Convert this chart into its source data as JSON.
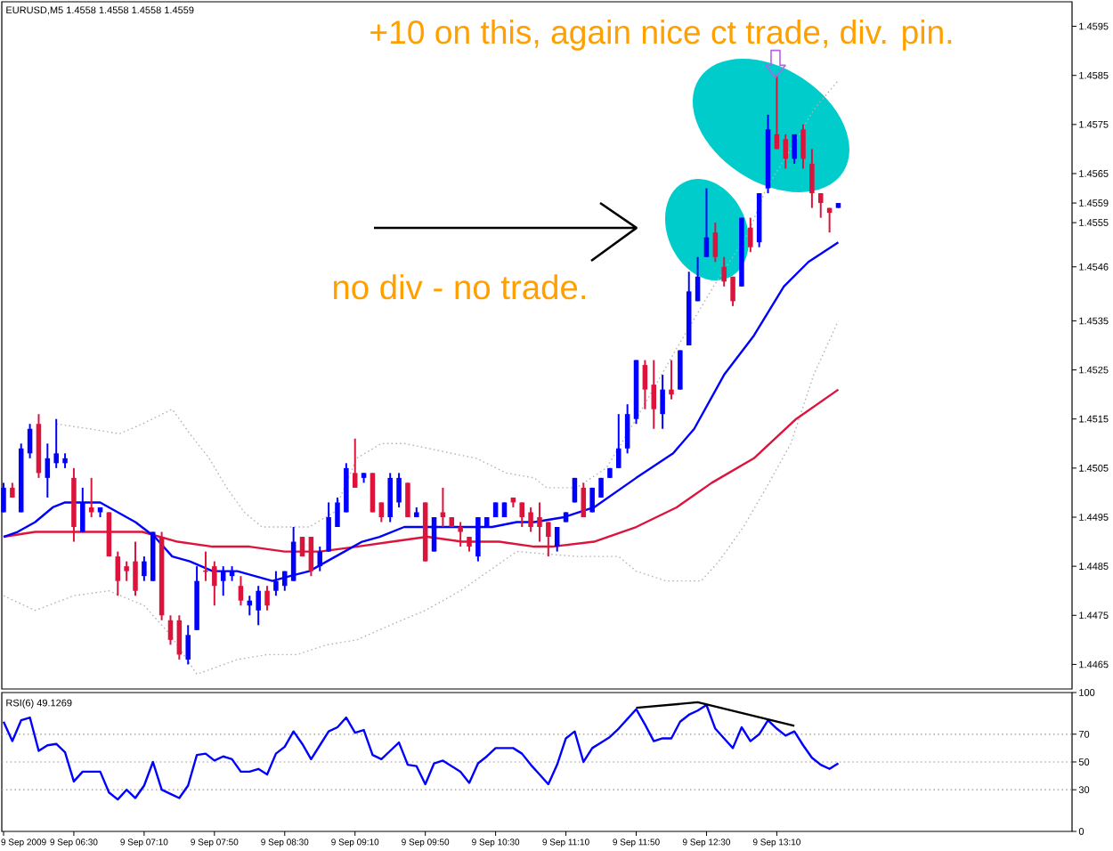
{
  "chart_data": [
    {
      "type": "candlestick",
      "title": "EURUSD,M5 1.4558 1.4558 1.4558 1.4559",
      "x": [
        "2009-09-09T05:50",
        "2009-09-09T05:55",
        "2009-09-09T06:00",
        "2009-09-09T06:05",
        "2009-09-09T06:10",
        "2009-09-09T06:15",
        "2009-09-09T06:20",
        "2009-09-09T06:25",
        "2009-09-09T06:30",
        "2009-09-09T06:35",
        "2009-09-09T06:40",
        "2009-09-09T06:45",
        "2009-09-09T06:50",
        "2009-09-09T06:55",
        "2009-09-09T07:00",
        "2009-09-09T07:05",
        "2009-09-09T07:10",
        "2009-09-09T07:15",
        "2009-09-09T07:20",
        "2009-09-09T07:25",
        "2009-09-09T07:30",
        "2009-09-09T07:35",
        "2009-09-09T07:40",
        "2009-09-09T07:45",
        "2009-09-09T07:50",
        "2009-09-09T07:55",
        "2009-09-09T08:00",
        "2009-09-09T08:05",
        "2009-09-09T08:10",
        "2009-09-09T08:15",
        "2009-09-09T08:20",
        "2009-09-09T08:25",
        "2009-09-09T08:30",
        "2009-09-09T08:35",
        "2009-09-09T08:40",
        "2009-09-09T08:45",
        "2009-09-09T08:50",
        "2009-09-09T08:55",
        "2009-09-09T09:00",
        "2009-09-09T09:05",
        "2009-09-09T09:10",
        "2009-09-09T09:15",
        "2009-09-09T09:20",
        "2009-09-09T09:25",
        "2009-09-09T09:30",
        "2009-09-09T09:35",
        "2009-09-09T09:40",
        "2009-09-09T09:45",
        "2009-09-09T09:50",
        "2009-09-09T09:55",
        "2009-09-09T10:00",
        "2009-09-09T10:05",
        "2009-09-09T10:10",
        "2009-09-09T10:15",
        "2009-09-09T10:20",
        "2009-09-09T10:25",
        "2009-09-09T10:30",
        "2009-09-09T10:35",
        "2009-09-09T10:40",
        "2009-09-09T10:45",
        "2009-09-09T10:50",
        "2009-09-09T10:55",
        "2009-09-09T11:00",
        "2009-09-09T11:05",
        "2009-09-09T11:10",
        "2009-09-09T11:15",
        "2009-09-09T11:20",
        "2009-09-09T11:25",
        "2009-09-09T11:30",
        "2009-09-09T11:35",
        "2009-09-09T11:40",
        "2009-09-09T11:45",
        "2009-09-09T11:50",
        "2009-09-09T11:55",
        "2009-09-09T12:00",
        "2009-09-09T12:05",
        "2009-09-09T12:10",
        "2009-09-09T12:15",
        "2009-09-09T12:20",
        "2009-09-09T12:25",
        "2009-09-09T12:30",
        "2009-09-09T12:35",
        "2009-09-09T12:40",
        "2009-09-09T12:45",
        "2009-09-09T12:50",
        "2009-09-09T12:55",
        "2009-09-09T13:00",
        "2009-09-09T13:05",
        "2009-09-09T13:10",
        "2009-09-09T13:15",
        "2009-09-09T13:20",
        "2009-09-09T13:25",
        "2009-09-09T13:30",
        "2009-09-09T13:35",
        "2009-09-09T13:40",
        "2009-09-09T13:45"
      ],
      "ohlc": [
        [
          1.4496,
          1.4502,
          1.4496,
          1.4501
        ],
        [
          1.4501,
          1.4502,
          1.4499,
          1.4499
        ],
        [
          1.4496,
          1.451,
          1.4496,
          1.4509
        ],
        [
          1.4508,
          1.4514,
          1.4507,
          1.4513
        ],
        [
          1.4514,
          1.4516,
          1.4503,
          1.4504
        ],
        [
          1.4503,
          1.451,
          1.4499,
          1.4507
        ],
        [
          1.4506,
          1.4515,
          1.4505,
          1.4508
        ],
        [
          1.4506,
          1.4508,
          1.4505,
          1.4507
        ],
        [
          1.4503,
          1.4505,
          1.449,
          1.4493
        ],
        [
          1.4492,
          1.4501,
          1.4492,
          1.4498
        ],
        [
          1.4497,
          1.4503,
          1.4495,
          1.4496
        ],
        [
          1.4496,
          1.4497,
          1.4495,
          1.4497
        ],
        [
          1.4496,
          1.4496,
          1.4487,
          1.4487
        ],
        [
          1.4487,
          1.4488,
          1.4479,
          1.4482
        ],
        [
          1.4485,
          1.4486,
          1.4482,
          1.4484
        ],
        [
          1.4486,
          1.449,
          1.4479,
          1.448
        ],
        [
          1.4483,
          1.4487,
          1.4482,
          1.4486
        ],
        [
          1.4482,
          1.4492,
          1.4482,
          1.4492
        ],
        [
          1.4491,
          1.4492,
          1.4474,
          1.4475
        ],
        [
          1.4474,
          1.4475,
          1.4469,
          1.447
        ],
        [
          1.4474,
          1.4475,
          1.4466,
          1.4467
        ],
        [
          1.4466,
          1.4473,
          1.4465,
          1.4471
        ],
        [
          1.4472,
          1.4485,
          1.4472,
          1.4482
        ],
        [
          1.4484,
          1.4488,
          1.4482,
          1.4484
        ],
        [
          1.4485,
          1.4486,
          1.4477,
          1.4481
        ],
        [
          1.4482,
          1.4485,
          1.4479,
          1.4484
        ],
        [
          1.4483,
          1.4485,
          1.4482,
          1.4484
        ],
        [
          1.4481,
          1.4483,
          1.4477,
          1.4478
        ],
        [
          1.4477,
          1.4479,
          1.4475,
          1.4478
        ],
        [
          1.4476,
          1.4481,
          1.4473,
          1.448
        ],
        [
          1.448,
          1.4481,
          1.4476,
          1.4477
        ],
        [
          1.448,
          1.4484,
          1.4479,
          1.4482
        ],
        [
          1.4481,
          1.4484,
          1.448,
          1.4484
        ],
        [
          1.4482,
          1.4493,
          1.4482,
          1.449
        ],
        [
          1.4491,
          1.4491,
          1.4487,
          1.4487
        ],
        [
          1.4491,
          1.4491,
          1.4483,
          1.4484
        ],
        [
          1.4485,
          1.4489,
          1.4484,
          1.4488
        ],
        [
          1.4488,
          1.4498,
          1.4488,
          1.4495
        ],
        [
          1.4493,
          1.4499,
          1.4493,
          1.4498
        ],
        [
          1.4496,
          1.4506,
          1.4496,
          1.4505
        ],
        [
          1.4504,
          1.4511,
          1.4501,
          1.4501
        ],
        [
          1.4503,
          1.4504,
          1.4502,
          1.4504
        ],
        [
          1.4504,
          1.4504,
          1.4496,
          1.4496
        ],
        [
          1.4498,
          1.4498,
          1.4494,
          1.4495
        ],
        [
          1.4495,
          1.4504,
          1.4494,
          1.4503
        ],
        [
          1.4498,
          1.4504,
          1.4497,
          1.4503
        ],
        [
          1.4502,
          1.4502,
          1.4495,
          1.4495
        ],
        [
          1.4495,
          1.4497,
          1.4495,
          1.4496
        ],
        [
          1.4498,
          1.4498,
          1.4486,
          1.4486
        ],
        [
          1.4488,
          1.4495,
          1.4488,
          1.4495
        ],
        [
          1.4496,
          1.4501,
          1.4493,
          1.4495
        ],
        [
          1.4495,
          1.4495,
          1.4493,
          1.4493
        ],
        [
          1.4493,
          1.4494,
          1.4489,
          1.4492
        ],
        [
          1.4491,
          1.4491,
          1.4488,
          1.4489
        ],
        [
          1.4487,
          1.4495,
          1.4486,
          1.4495
        ],
        [
          1.4493,
          1.4495,
          1.4493,
          1.4495
        ],
        [
          1.4495,
          1.4498,
          1.4495,
          1.4498
        ],
        [
          1.4495,
          1.4498,
          1.4495,
          1.4498
        ],
        [
          1.4499,
          1.4499,
          1.4497,
          1.4498
        ],
        [
          1.4498,
          1.4498,
          1.4493,
          1.4495
        ],
        [
          1.4496,
          1.4497,
          1.4492,
          1.4493
        ],
        [
          1.4495,
          1.4498,
          1.449,
          1.4493
        ],
        [
          1.4494,
          1.4494,
          1.4487,
          1.4491
        ],
        [
          1.4489,
          1.4493,
          1.4488,
          1.4493
        ],
        [
          1.4494,
          1.4496,
          1.4494,
          1.4496
        ],
        [
          1.4498,
          1.4503,
          1.4498,
          1.4503
        ],
        [
          1.4501,
          1.4502,
          1.4495,
          1.4495
        ],
        [
          1.4496,
          1.4501,
          1.4496,
          1.4501
        ],
        [
          1.4499,
          1.4503,
          1.4499,
          1.4503
        ],
        [
          1.4503,
          1.4505,
          1.4503,
          1.4505
        ],
        [
          1.4505,
          1.4516,
          1.4505,
          1.4509
        ],
        [
          1.4509,
          1.4518,
          1.4508,
          1.4516
        ],
        [
          1.4515,
          1.4527,
          1.4514,
          1.4527
        ],
        [
          1.4526,
          1.4527,
          1.4517,
          1.4521
        ],
        [
          1.4522,
          1.4527,
          1.4513,
          1.4517
        ],
        [
          1.4516,
          1.4524,
          1.4513,
          1.4521
        ],
        [
          1.4521,
          1.4527,
          1.4519,
          1.452
        ],
        [
          1.4521,
          1.4529,
          1.4521,
          1.4529
        ],
        [
          1.453,
          1.4545,
          1.453,
          1.4541
        ],
        [
          1.4539,
          1.4548,
          1.4539,
          1.4544
        ],
        [
          1.4548,
          1.4562,
          1.4548,
          1.4552
        ],
        [
          1.4553,
          1.4555,
          1.4547,
          1.4548
        ],
        [
          1.4546,
          1.4548,
          1.4542,
          1.4543
        ],
        [
          1.4544,
          1.4544,
          1.4538,
          1.4539
        ],
        [
          1.4542,
          1.4556,
          1.4542,
          1.4556
        ],
        [
          1.4554,
          1.4556,
          1.4549,
          1.455
        ],
        [
          1.4551,
          1.4561,
          1.455,
          1.4561
        ],
        [
          1.4562,
          1.4577,
          1.4561,
          1.4574
        ],
        [
          1.4573,
          1.4585,
          1.457,
          1.457
        ],
        [
          1.4572,
          1.4573,
          1.4566,
          1.4568
        ],
        [
          1.4568,
          1.4573,
          1.4567,
          1.4573
        ],
        [
          1.4574,
          1.4575,
          1.4566,
          1.4568
        ],
        [
          1.4567,
          1.457,
          1.4558,
          1.4561
        ],
        [
          1.4561,
          1.4561,
          1.4556,
          1.4559
        ],
        [
          1.4558,
          1.4558,
          1.4553,
          1.4557
        ],
        [
          1.4558,
          1.4559,
          1.4558,
          1.4559
        ]
      ],
      "colors": [
        "#0000ff",
        "#dc143c",
        "#0000ff",
        "#0000ff",
        "#dc143c",
        "#0000ff",
        "#0000ff",
        "#0000ff",
        "#dc143c",
        "#0000ff",
        "#dc143c",
        "#0000ff",
        "#dc143c",
        "#dc143c",
        "#dc143c",
        "#dc143c",
        "#0000ff",
        "#0000ff",
        "#dc143c",
        "#dc143c",
        "#dc143c",
        "#0000ff",
        "#0000ff",
        "#dc143c",
        "#dc143c",
        "#0000ff",
        "#0000ff",
        "#dc143c",
        "#0000ff",
        "#0000ff",
        "#dc143c",
        "#0000ff",
        "#0000ff",
        "#0000ff",
        "#dc143c",
        "#dc143c",
        "#0000ff",
        "#0000ff",
        "#0000ff",
        "#0000ff",
        "#dc143c",
        "#0000ff",
        "#dc143c",
        "#dc143c",
        "#0000ff",
        "#0000ff",
        "#dc143c",
        "#0000ff",
        "#dc143c",
        "#0000ff",
        "#dc143c",
        "#dc143c",
        "#dc143c",
        "#dc143c",
        "#0000ff",
        "#0000ff",
        "#0000ff",
        "#0000ff",
        "#dc143c",
        "#dc143c",
        "#dc143c",
        "#dc143c",
        "#dc143c",
        "#0000ff",
        "#0000ff",
        "#0000ff",
        "#dc143c",
        "#0000ff",
        "#0000ff",
        "#0000ff",
        "#0000ff",
        "#0000ff",
        "#0000ff",
        "#dc143c",
        "#dc143c",
        "#0000ff",
        "#dc143c",
        "#0000ff",
        "#0000ff",
        "#0000ff",
        "#0000ff",
        "#dc143c",
        "#dc143c",
        "#dc143c",
        "#0000ff",
        "#dc143c",
        "#0000ff",
        "#0000ff",
        "#dc143c",
        "#dc143c",
        "#0000ff",
        "#dc143c",
        "#dc143c",
        "#dc143c",
        "#dc143c",
        "#0000ff"
      ],
      "series": [
        {
          "type": "line",
          "color": "#b4b4b4",
          "line_style": "dotted",
          "x": [
            "2009-09-09T06:20",
            "2009-09-09T06:39",
            "2009-09-09T06:56",
            "2009-09-09T07:09",
            "2009-09-09T07:26",
            "2009-09-09T07:36",
            "2009-09-09T07:47",
            "2009-09-09T07:57",
            "2009-09-09T08:07",
            "2009-09-09T08:17",
            "2009-09-09T08:30",
            "2009-09-09T08:44",
            "2009-09-09T08:58",
            "2009-09-09T09:11",
            "2009-09-09T09:25",
            "2009-09-09T09:38",
            "2009-09-09T09:52",
            "2009-09-09T10:05",
            "2009-09-09T10:19",
            "2009-09-09T10:36",
            "2009-09-09T10:52",
            "2009-09-09T10:59",
            "2009-09-09T11:16",
            "2009-09-09T11:33",
            "2009-09-09T11:50",
            "2009-09-09T12:14",
            "2009-09-09T12:34",
            "2009-09-09T12:54",
            "2009-09-09T13:04",
            "2009-09-09T13:18",
            "2009-09-09T13:31",
            "2009-09-09T13:45"
          ],
          "values": [
            1.4514,
            1.4513,
            1.4512,
            1.4514,
            1.4517,
            1.4512,
            1.4507,
            1.4501,
            1.4496,
            1.4493,
            1.4493,
            1.4493,
            1.4496,
            1.4507,
            1.451,
            1.451,
            1.4509,
            1.4508,
            1.4507,
            1.4504,
            1.4503,
            1.4501,
            1.4501,
            1.4505,
            1.4515,
            1.453,
            1.4542,
            1.4553,
            1.4562,
            1.457,
            1.4578,
            1.4584
          ]
        },
        {
          "type": "line",
          "color": "#b4b4b4",
          "line_style": "dotted",
          "x": [
            "2009-09-09T05:50",
            "2009-09-09T06:08",
            "2009-09-09T06:30",
            "2009-09-09T06:50",
            "2009-09-09T07:10",
            "2009-09-09T07:25",
            "2009-09-09T07:40",
            "2009-09-09T08:03",
            "2009-09-09T08:20",
            "2009-09-09T08:37",
            "2009-09-09T08:54",
            "2009-09-09T09:11",
            "2009-09-09T09:30",
            "2009-09-09T09:50",
            "2009-09-09T10:10",
            "2009-09-09T10:30",
            "2009-09-09T10:42",
            "2009-09-09T11:16",
            "2009-09-09T11:40",
            "2009-09-09T11:50",
            "2009-09-09T12:07",
            "2009-09-09T12:27",
            "2009-09-09T12:37",
            "2009-09-09T12:51",
            "2009-09-09T13:04",
            "2009-09-09T13:18",
            "2009-09-09T13:31",
            "2009-09-09T13:45"
          ],
          "values": [
            1.4479,
            1.4476,
            1.4479,
            1.448,
            1.4477,
            1.4471,
            1.4463,
            1.4466,
            1.4467,
            1.4467,
            1.4469,
            1.447,
            1.4473,
            1.4476,
            1.448,
            1.4485,
            1.4488,
            1.4487,
            1.4487,
            1.4484,
            1.4482,
            1.4482,
            1.4486,
            1.4493,
            1.4501,
            1.451,
            1.4524,
            1.4535
          ]
        },
        {
          "type": "line",
          "color": "#dc143c",
          "x": [
            "2009-09-09T05:50",
            "2009-09-09T06:08",
            "2009-09-09T06:28",
            "2009-09-09T06:49",
            "2009-09-09T07:09",
            "2009-09-09T07:29",
            "2009-09-09T07:49",
            "2009-09-09T08:10",
            "2009-09-09T08:30",
            "2009-09-09T08:50",
            "2009-09-09T09:11",
            "2009-09-09T09:31",
            "2009-09-09T09:51",
            "2009-09-09T10:11",
            "2009-09-09T10:32",
            "2009-09-09T10:52",
            "2009-09-09T11:02",
            "2009-09-09T11:26",
            "2009-09-09T11:50",
            "2009-09-09T12:13",
            "2009-09-09T12:33",
            "2009-09-09T12:57",
            "2009-09-09T13:21",
            "2009-09-09T13:45"
          ],
          "values": [
            1.4491,
            1.4492,
            1.4492,
            1.4492,
            1.4492,
            1.449,
            1.4489,
            1.4489,
            1.4488,
            1.4488,
            1.4489,
            1.449,
            1.4491,
            1.449,
            1.449,
            1.4489,
            1.4489,
            1.449,
            1.4493,
            1.4497,
            1.4502,
            1.4507,
            1.4515,
            1.4521
          ]
        },
        {
          "type": "line",
          "color": "#0000ff",
          "x": [
            "2009-09-09T05:50",
            "2009-09-09T05:58",
            "2009-09-09T06:08",
            "2009-09-09T06:18",
            "2009-09-09T06:25",
            "2009-09-09T06:45",
            "2009-09-09T06:55",
            "2009-09-09T07:05",
            "2009-09-09T07:16",
            "2009-09-09T07:26",
            "2009-09-09T07:36",
            "2009-09-09T07:49",
            "2009-09-09T08:03",
            "2009-09-09T08:13",
            "2009-09-09T08:23",
            "2009-09-09T08:33",
            "2009-09-09T08:44",
            "2009-09-09T08:54",
            "2009-09-09T09:04",
            "2009-09-09T09:14",
            "2009-09-09T09:24",
            "2009-09-09T09:38",
            "2009-09-09T09:51",
            "2009-09-09T10:05",
            "2009-09-09T10:18",
            "2009-09-09T10:28",
            "2009-09-09T10:42",
            "2009-09-09T10:52",
            "2009-09-09T11:09",
            "2009-09-09T11:26",
            "2009-09-09T11:50",
            "2009-09-09T12:11",
            "2009-09-09T12:23",
            "2009-09-09T12:40",
            "2009-09-09T12:57",
            "2009-09-09T13:14",
            "2009-09-09T13:28",
            "2009-09-09T13:45"
          ],
          "values": [
            1.4491,
            1.4492,
            1.4494,
            1.4497,
            1.4498,
            1.4498,
            1.4496,
            1.4494,
            1.4491,
            1.4487,
            1.4486,
            1.4484,
            1.4484,
            1.4483,
            1.4482,
            1.4483,
            1.4484,
            1.4486,
            1.4488,
            1.449,
            1.4491,
            1.4493,
            1.4493,
            1.4493,
            1.4493,
            1.4493,
            1.4494,
            1.4494,
            1.4495,
            1.4497,
            1.4503,
            1.4508,
            1.4513,
            1.4524,
            1.4532,
            1.4542,
            1.4547,
            1.4551
          ]
        }
      ],
      "xlim": [
        "2009-09-09T05:49",
        "2009-09-09T15:58"
      ],
      "ylim": [
        1.446,
        1.46
      ],
      "yticks": [
        1.4465,
        1.4475,
        1.4485,
        1.4495,
        1.4505,
        1.4515,
        1.4525,
        1.4535,
        1.4546,
        1.4555,
        1.4559,
        1.4565,
        1.4575,
        1.4585,
        1.4595
      ],
      "tick_labels": "y",
      "annotations": [
        "+10 on this, again nice ct trade, div. pin.",
        "no div - no trade."
      ]
    },
    {
      "type": "line",
      "title": "RSI(6) 49.1269",
      "x": [
        "2009-09-09T05:50",
        "2009-09-09T05:55",
        "2009-09-09T06:00",
        "2009-09-09T06:05",
        "2009-09-09T06:10",
        "2009-09-09T06:15",
        "2009-09-09T06:20",
        "2009-09-09T06:25",
        "2009-09-09T06:30",
        "2009-09-09T06:35",
        "2009-09-09T06:40",
        "2009-09-09T06:45",
        "2009-09-09T06:50",
        "2009-09-09T06:55",
        "2009-09-09T07:00",
        "2009-09-09T07:05",
        "2009-09-09T07:10",
        "2009-09-09T07:15",
        "2009-09-09T07:20",
        "2009-09-09T07:25",
        "2009-09-09T07:30",
        "2009-09-09T07:35",
        "2009-09-09T07:40",
        "2009-09-09T07:45",
        "2009-09-09T07:50",
        "2009-09-09T07:55",
        "2009-09-09T08:00",
        "2009-09-09T08:05",
        "2009-09-09T08:10",
        "2009-09-09T08:15",
        "2009-09-09T08:20",
        "2009-09-09T08:25",
        "2009-09-09T08:30",
        "2009-09-09T08:35",
        "2009-09-09T08:40",
        "2009-09-09T08:45",
        "2009-09-09T08:50",
        "2009-09-09T08:55",
        "2009-09-09T09:00",
        "2009-09-09T09:05",
        "2009-09-09T09:10",
        "2009-09-09T09:15",
        "2009-09-09T09:20",
        "2009-09-09T09:25",
        "2009-09-09T09:30",
        "2009-09-09T09:35",
        "2009-09-09T09:40",
        "2009-09-09T09:45",
        "2009-09-09T09:50",
        "2009-09-09T09:55",
        "2009-09-09T10:00",
        "2009-09-09T10:05",
        "2009-09-09T10:10",
        "2009-09-09T10:15",
        "2009-09-09T10:20",
        "2009-09-09T10:25",
        "2009-09-09T10:30",
        "2009-09-09T10:35",
        "2009-09-09T10:40",
        "2009-09-09T10:45",
        "2009-09-09T10:50",
        "2009-09-09T10:55",
        "2009-09-09T11:00",
        "2009-09-09T11:05",
        "2009-09-09T11:10",
        "2009-09-09T11:15",
        "2009-09-09T11:20",
        "2009-09-09T11:25",
        "2009-09-09T11:30",
        "2009-09-09T11:35",
        "2009-09-09T11:40",
        "2009-09-09T11:45",
        "2009-09-09T11:50",
        "2009-09-09T11:55",
        "2009-09-09T12:00",
        "2009-09-09T12:05",
        "2009-09-09T12:10",
        "2009-09-09T12:15",
        "2009-09-09T12:20",
        "2009-09-09T12:25",
        "2009-09-09T12:30",
        "2009-09-09T12:35",
        "2009-09-09T12:40",
        "2009-09-09T12:45",
        "2009-09-09T12:50",
        "2009-09-09T12:55",
        "2009-09-09T13:00",
        "2009-09-09T13:05",
        "2009-09-09T13:10",
        "2009-09-09T13:15",
        "2009-09-09T13:20",
        "2009-09-09T13:25",
        "2009-09-09T13:30",
        "2009-09-09T13:35",
        "2009-09-09T13:40",
        "2009-09-09T13:45"
      ],
      "series": [
        {
          "color": "#0000ff",
          "values": [
            79,
            65,
            80,
            82,
            58,
            62,
            63,
            57,
            36,
            43,
            43,
            43,
            28,
            23,
            30,
            24,
            33,
            50,
            30,
            27,
            24,
            33,
            55,
            56,
            51,
            54,
            52,
            43,
            43,
            45,
            41,
            56,
            61,
            72,
            63,
            52,
            62,
            72,
            75,
            82,
            71,
            73,
            55,
            52,
            58,
            64,
            48,
            47,
            34,
            49,
            51,
            47,
            43,
            35,
            49,
            54,
            60,
            60,
            60,
            56,
            48,
            41,
            34,
            48,
            67,
            72,
            50,
            60,
            64,
            68,
            74,
            81,
            88,
            77,
            65,
            67,
            67,
            79,
            84,
            87,
            91,
            74,
            67,
            60,
            75,
            65,
            70,
            80,
            74,
            69,
            72,
            62,
            53,
            48,
            45,
            49
          ]
        },
        {
          "color": "#000000",
          "x": [
            "2009-09-09T11:50",
            "2009-09-09T12:25",
            "2009-09-09T13:20"
          ],
          "values": [
            89,
            93,
            76
          ]
        }
      ],
      "xlim": [
        "2009-09-09T05:49",
        "2009-09-09T15:58"
      ],
      "xticks": [
        {
          "value": "2009-09-09T05:50",
          "label": "9 Sep 2009"
        },
        {
          "value": "2009-09-09T06:30",
          "label": "9 Sep 06:30"
        },
        {
          "value": "2009-09-09T07:10",
          "label": "9 Sep 07:10"
        },
        {
          "value": "2009-09-09T07:50",
          "label": "9 Sep 07:50"
        },
        {
          "value": "2009-09-09T08:30",
          "label": "9 Sep 08:30"
        },
        {
          "value": "2009-09-09T09:10",
          "label": "9 Sep 09:10"
        },
        {
          "value": "2009-09-09T09:50",
          "label": "9 Sep 09:50"
        },
        {
          "value": "2009-09-09T10:30",
          "label": "9 Sep 10:30"
        },
        {
          "value": "2009-09-09T11:10",
          "label": "9 Sep 11:10"
        },
        {
          "value": "2009-09-09T11:50",
          "label": "9 Sep 11:50"
        },
        {
          "value": "2009-09-09T12:30",
          "label": "9 Sep 12:30"
        },
        {
          "value": "2009-09-09T13:10",
          "label": "9 Sep 13:10"
        }
      ],
      "ylim": [
        0,
        100
      ],
      "yticks": [
        0,
        30,
        50,
        70,
        100
      ],
      "ref_lines": [
        {
          "axis": "y",
          "value": 30,
          "color": "#999999",
          "line_style": "dotted"
        },
        {
          "axis": "y",
          "value": 50,
          "color": "#999999",
          "line_style": "dotted"
        },
        {
          "axis": "y",
          "value": 70,
          "color": "#999999",
          "line_style": "dotted"
        }
      ]
    }
  ]
}
